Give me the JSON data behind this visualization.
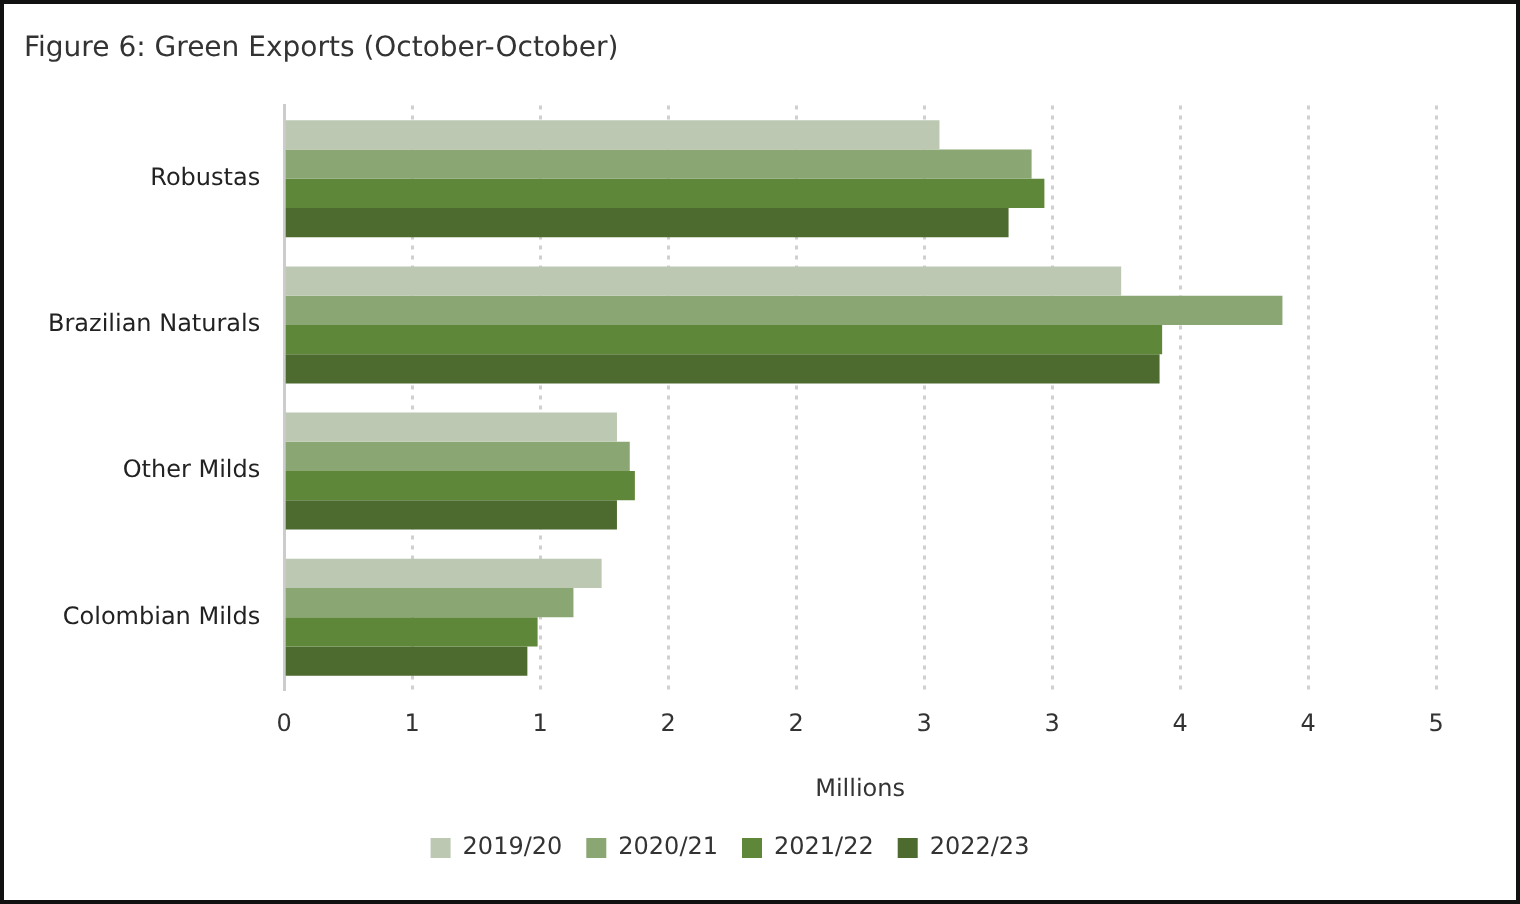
{
  "chart_data": {
    "type": "bar",
    "orientation": "horizontal",
    "title": "Figure 6: Green Exports (October-October)",
    "xlabel": "Millions",
    "categories": [
      "Robustas",
      "Brazilian Naturals",
      "Other Milds",
      "Colombian Milds"
    ],
    "series": [
      {
        "name": "2019/20",
        "color": "#bcc8b1",
        "values": [
          2.56,
          3.27,
          1.3,
          1.24
        ]
      },
      {
        "name": "2020/21",
        "color": "#8aa673",
        "values": [
          2.92,
          3.9,
          1.35,
          1.13
        ]
      },
      {
        "name": "2021/22",
        "color": "#5f873a",
        "values": [
          2.97,
          3.43,
          1.37,
          0.99
        ]
      },
      {
        "name": "2022/23",
        "color": "#4d6a2f",
        "values": [
          2.83,
          3.42,
          1.3,
          0.95
        ]
      }
    ],
    "xlim": [
      0,
      4.5
    ],
    "xticks": [
      0,
      {
        "value": 0.5,
        "label": "1"
      },
      1,
      {
        "value": 1.5,
        "label": "2"
      },
      2,
      {
        "value": 2.5,
        "label": "3"
      },
      3,
      {
        "value": 3.5,
        "label": "4"
      },
      4,
      {
        "value": 4.5,
        "label": "5"
      }
    ],
    "grid": "x",
    "legend": "bottom"
  }
}
